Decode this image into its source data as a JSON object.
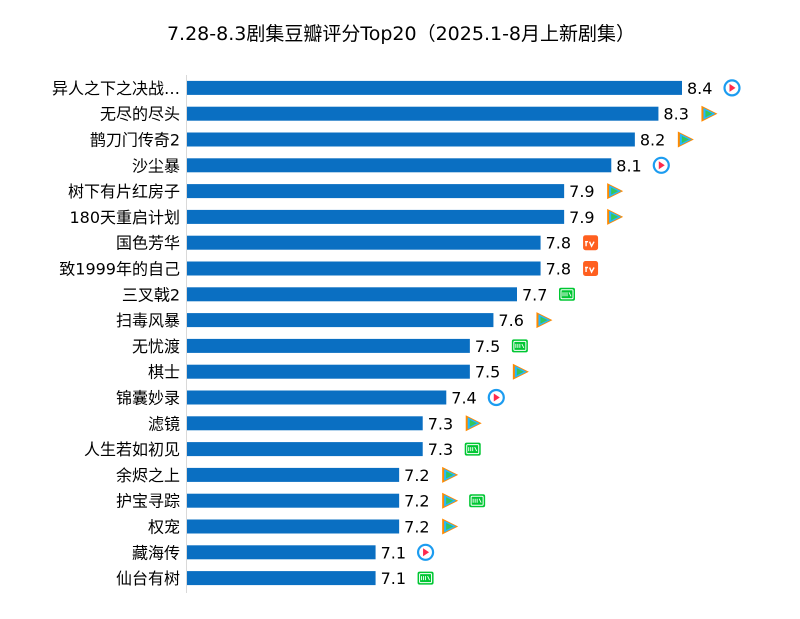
{
  "chart_data": {
    "type": "bar",
    "orientation": "horizontal",
    "title": "7.28-8.3剧集豆瓣评分Top20（2025.1-8月上新剧集）",
    "xlabel": "",
    "ylabel": "",
    "xlim": [
      6.3,
      8.4
    ],
    "grid": false,
    "legend": "none",
    "bar_color": "#0a6fc2",
    "categories": [
      "异人之下之决战…",
      "无尽的尽头",
      "鹊刀门传奇2",
      "沙尘暴",
      "树下有片红房子",
      "180天重启计划",
      "国色芳华",
      "致1999年的自己",
      "三叉戟2",
      "扫毒风暴",
      "无忧渡",
      "棋士",
      "锦囊妙录",
      "滤镜",
      "人生若如初见",
      "余烬之上",
      "护宝寻踪",
      "权宠",
      "藏海传",
      "仙台有树"
    ],
    "values": [
      8.4,
      8.3,
      8.2,
      8.1,
      7.9,
      7.9,
      7.8,
      7.8,
      7.7,
      7.6,
      7.5,
      7.5,
      7.4,
      7.3,
      7.3,
      7.2,
      7.2,
      7.2,
      7.1,
      7.1
    ],
    "value_labels": [
      "8.4",
      "8.3",
      "8.2",
      "8.1",
      "7.9",
      "7.9",
      "7.8",
      "7.8",
      "7.7",
      "7.6",
      "7.5",
      "7.5",
      "7.4",
      "7.3",
      "7.3",
      "7.2",
      "7.2",
      "7.2",
      "7.1",
      "7.1"
    ],
    "platforms": [
      [
        "youku"
      ],
      [
        "tencent"
      ],
      [
        "tencent"
      ],
      [
        "youku"
      ],
      [
        "tencent"
      ],
      [
        "tencent"
      ],
      [
        "mango"
      ],
      [
        "mango"
      ],
      [
        "iqiyi"
      ],
      [
        "tencent"
      ],
      [
        "iqiyi"
      ],
      [
        "tencent"
      ],
      [
        "youku"
      ],
      [
        "tencent"
      ],
      [
        "iqiyi"
      ],
      [
        "tencent"
      ],
      [
        "tencent",
        "iqiyi"
      ],
      [
        "tencent"
      ],
      [
        "youku"
      ],
      [
        "iqiyi"
      ]
    ]
  },
  "platform_logos": {
    "youku": {
      "icon": "youku-logo-icon",
      "colors": [
        "#1c9cf0",
        "#ff2a4d"
      ]
    },
    "tencent": {
      "icon": "tencent-video-logo-icon",
      "colors": [
        "#ff8a00",
        "#23b8ff",
        "#35c65a"
      ]
    },
    "mango": {
      "icon": "mango-tv-logo-icon",
      "colors": [
        "#ff5f1f"
      ]
    },
    "iqiyi": {
      "icon": "iqiyi-logo-icon",
      "colors": [
        "#00c733"
      ]
    }
  }
}
